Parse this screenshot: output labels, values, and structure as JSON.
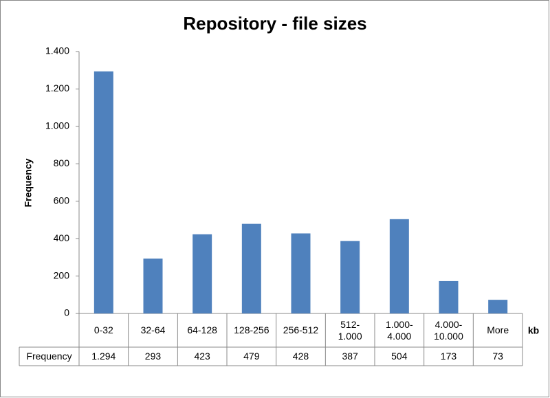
{
  "chart_data": {
    "type": "bar",
    "title": "Repository - file sizes",
    "y_label": "Frequency",
    "x_label": "kb",
    "categories": [
      "0-32",
      "32-64",
      "64-128",
      "128-256",
      "256-512",
      "512-1.000",
      "1.000-4.000",
      "4.000-10.000",
      "More"
    ],
    "series": [
      {
        "name": "Frequency",
        "color": "#4f81bd",
        "values": [
          1294,
          293,
          423,
          479,
          428,
          387,
          504,
          173,
          73
        ],
        "value_labels": [
          "1.294",
          "293",
          "423",
          "479",
          "428",
          "387",
          "504",
          "173",
          "73"
        ]
      }
    ],
    "ylim": [
      0,
      1400
    ],
    "yticks": [
      0,
      200,
      400,
      600,
      800,
      {
        "value": 1000,
        "label": "1.000"
      },
      {
        "value": 1200,
        "label": "1.200"
      },
      {
        "value": 1400,
        "label": "1.400"
      }
    ],
    "grid": false
  }
}
